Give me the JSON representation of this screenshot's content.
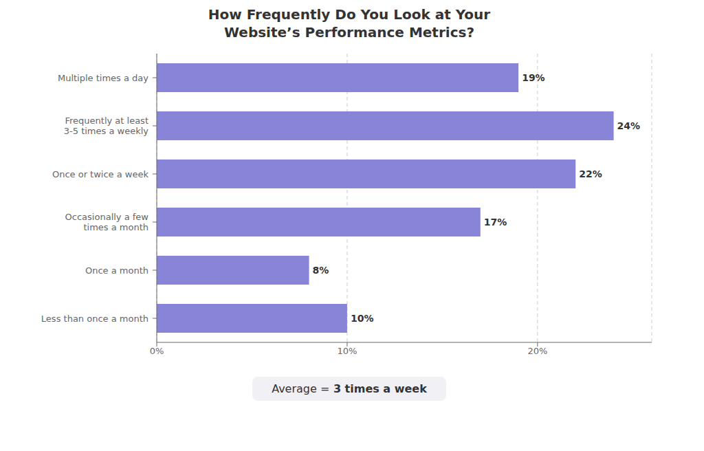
{
  "chart_data": {
    "type": "bar",
    "orientation": "horizontal",
    "title": "How Frequently Do You Look at Your\nWebsite’s Performance Metrics?",
    "categories": [
      "Multiple times a day",
      "Frequently at least\n3-5 times a weekly",
      "Once or twice a week",
      "Occasionally a few\ntimes a month",
      "Once a month",
      "Less than once a month"
    ],
    "values": [
      19,
      24,
      22,
      17,
      8,
      10
    ],
    "value_labels": [
      "19%",
      "24%",
      "22%",
      "17%",
      "8%",
      "10%"
    ],
    "data_labels": true,
    "color": "#8884d8",
    "xlim": [
      0,
      26
    ],
    "xticks": [
      {
        "value": 0,
        "label": "0%"
      },
      {
        "value": 10,
        "label": "10%"
      },
      {
        "value": 20,
        "label": "20%"
      }
    ],
    "grid": true,
    "annotation": [
      "Average =",
      "3 times a week"
    ]
  }
}
